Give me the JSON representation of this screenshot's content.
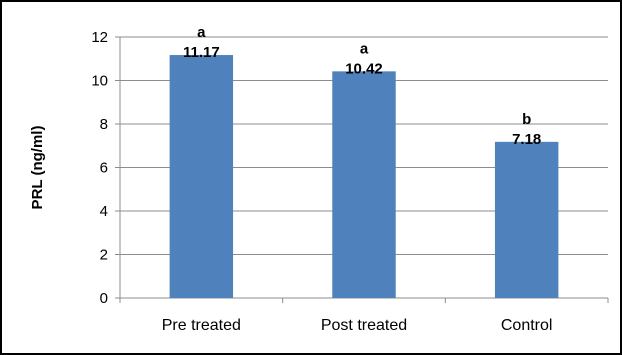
{
  "chart_data": {
    "type": "bar",
    "categories": [
      "Pre treated",
      "Post treated",
      "Control"
    ],
    "values": [
      11.17,
      10.42,
      7.18
    ],
    "value_labels": [
      "11.17",
      "10.42",
      "7.18"
    ],
    "significance_letters": [
      "a",
      "a",
      "b"
    ],
    "title": "",
    "xlabel": "",
    "ylabel": "PRL (ng/ml)",
    "ylim": [
      0,
      12
    ],
    "yticks": [
      0,
      2,
      4,
      6,
      8,
      10,
      12
    ],
    "grid": true,
    "legend": "none",
    "bar_color": "#4F81BD"
  }
}
